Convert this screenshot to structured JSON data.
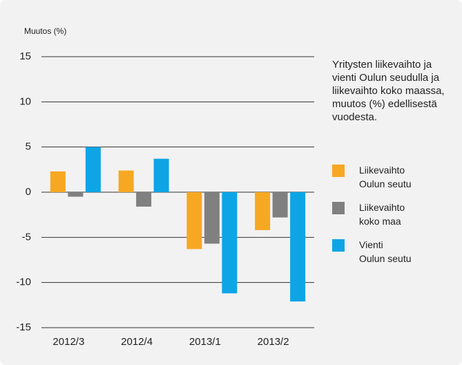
{
  "chart_data": {
    "type": "bar",
    "title": "Yritysten liikevaihto ja vienti Oulun seudulla ja liikevaihto koko maassa, muutos (%) edellisestä vuodesta.",
    "y_label": "Muutos (%)",
    "categories": [
      "2012/3",
      "2012/4",
      "2013/1",
      "2013/2"
    ],
    "series": [
      {
        "name": "Liikevaihto\nOulun seutu",
        "color": "#f7a823",
        "values": [
          2.3,
          2.4,
          -6.3,
          -4.2
        ]
      },
      {
        "name": "Liikevaihto\nkoko maa",
        "color": "#808080",
        "values": [
          -0.5,
          -1.6,
          -5.7,
          -2.8
        ]
      },
      {
        "name": "Vienti\nOulun seutu",
        "color": "#0ea5e6",
        "values": [
          5.0,
          3.7,
          -11.2,
          -12.1
        ]
      }
    ],
    "ylim": [
      -15,
      15
    ],
    "yticks": [
      -15,
      -10,
      -5,
      0,
      5,
      10,
      15
    ],
    "grid": true
  }
}
